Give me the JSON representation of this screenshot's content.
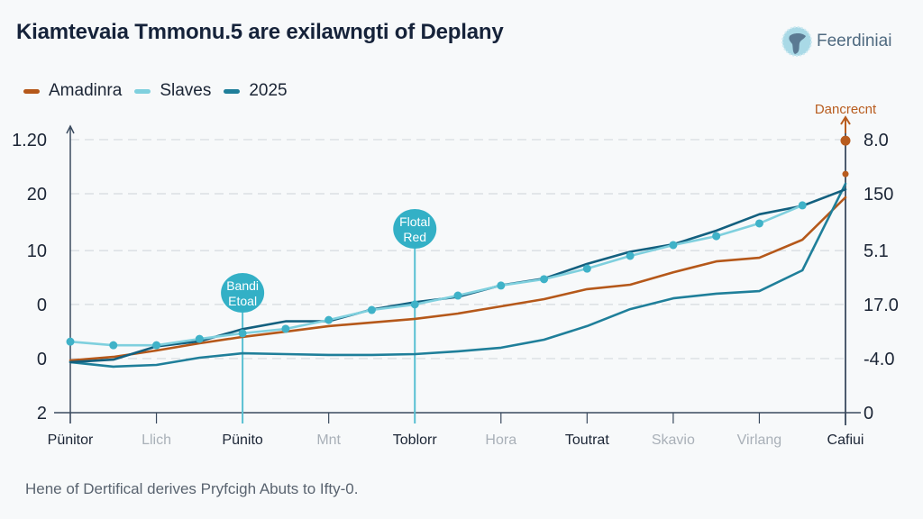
{
  "header": {
    "title": "Kiamtevaia Tmmonu.5 are exilawngti of Deplany",
    "brand": "Feerdiniai"
  },
  "footnote": "Hene of Dertifical derives Pryfcigh Abuts to Ifty-0.",
  "colors": {
    "amadinra": "#b5581a",
    "slaves": "#7fd0de",
    "slaves_marker": "#3fb2c8",
    "y2025": "#1f7f9a",
    "unlabeled": "#13607f",
    "axis": "#3a4a5e",
    "grid": "#d6dadf",
    "callout": "#33b0c6",
    "annotation": "#b85c1e"
  },
  "chart_data": {
    "type": "line",
    "title": "Kiamtevaia Tmmonu.5 are exilawngti of Deplany",
    "xlabel": "",
    "ylabel": "",
    "grid": true,
    "legend_position": "top-left",
    "categories": [
      "Pünitor",
      "Llich",
      "Pünito",
      "Mnt",
      "Toblorr",
      "Hora",
      "Toutrat",
      "Skavio",
      "Virlang",
      "Cafiui"
    ],
    "category_emphasis": [
      true,
      false,
      true,
      false,
      true,
      false,
      true,
      false,
      false,
      true
    ],
    "left_axis_ticks": [
      "2",
      "0",
      "0",
      "10",
      "20",
      "1.20"
    ],
    "right_axis_ticks": [
      "0",
      "-4.0",
      "17.0",
      "5.1",
      "150",
      "8.0"
    ],
    "ylim": [
      0,
      100
    ],
    "x": [
      0,
      0.5,
      1,
      1.5,
      2,
      2.5,
      3,
      3.5,
      4,
      4.5,
      5,
      5.5,
      6,
      6.5,
      7,
      7.5,
      8,
      8.5,
      9
    ],
    "series": [
      {
        "name": "Amadinra",
        "color_key": "amadinra",
        "markers": false,
        "values": [
          18.8,
          20.1,
          22.4,
          25.0,
          27.3,
          29.2,
          31.2,
          32.5,
          33.8,
          35.7,
          38.3,
          40.9,
          44.5,
          46.1,
          50.6,
          54.5,
          55.8,
          62.3,
          77.6
        ]
      },
      {
        "name": "Slaves",
        "color_key": "slaves",
        "markers": true,
        "values": [
          25.6,
          24.3,
          24.3,
          26.6,
          28.6,
          30.2,
          33.4,
          37.0,
          39.0,
          42.2,
          45.8,
          48.1,
          51.9,
          56.5,
          60.4,
          63.6,
          68.2,
          74.7,
          null
        ]
      },
      {
        "name": "2025",
        "color_key": "y2025",
        "markers": false,
        "values": [
          18.2,
          16.6,
          17.2,
          19.8,
          21.4,
          21.1,
          20.8,
          20.8,
          21.1,
          22.1,
          23.4,
          26.3,
          31.2,
          37.3,
          41.2,
          42.9,
          43.8,
          51.3,
          82.5
        ]
      },
      {
        "name": "",
        "color_key": "unlabeled",
        "markers": false,
        "values": [
          18.2,
          19.5,
          23.4,
          26.0,
          30.2,
          32.5,
          33.4,
          37.0,
          39.6,
          42.2,
          45.5,
          48.4,
          53.9,
          57.5,
          61.0,
          65.6,
          71.1,
          75.0,
          80.2
        ]
      }
    ],
    "annotations": [
      {
        "type": "callout",
        "label_line1": "Bandi",
        "label_line2": "Etoal",
        "x": 2
      },
      {
        "type": "callout",
        "label_line1": "Flotal",
        "label_line2": "Red",
        "x": 4
      },
      {
        "type": "endpoint",
        "label": "Dancrecnt",
        "x": 9,
        "value": 98
      }
    ]
  },
  "legend": [
    {
      "label": "Amadinra",
      "color_key": "amadinra"
    },
    {
      "label": "Slaves",
      "color_key": "slaves"
    },
    {
      "label": "2025",
      "color_key": "y2025"
    }
  ]
}
